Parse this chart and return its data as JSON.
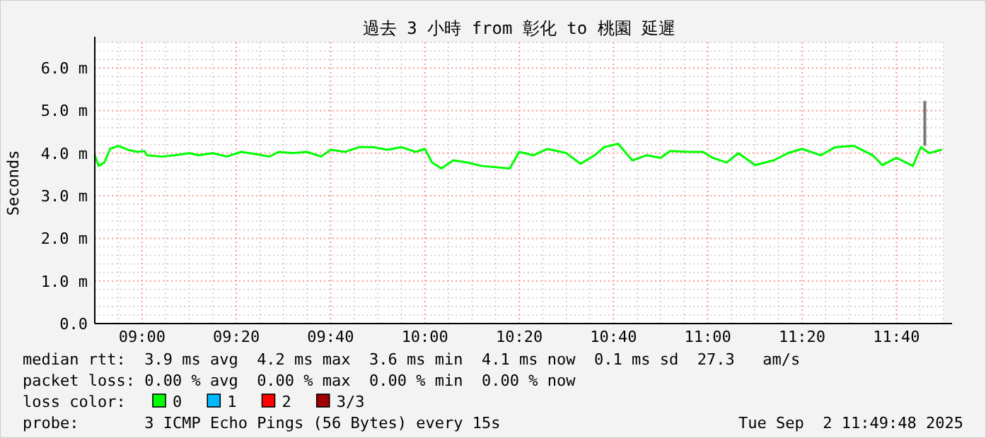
{
  "chart_data": {
    "type": "line",
    "title": "過去 3 小時 from 彰化 to 桃園 延遲",
    "ylabel": "Seconds",
    "xlim": [
      8.833,
      11.8333
    ],
    "xticks": [
      {
        "value": 9.0,
        "label": "09:00"
      },
      {
        "value": 9.3333,
        "label": "09:20"
      },
      {
        "value": 9.6667,
        "label": "09:40"
      },
      {
        "value": 10.0,
        "label": "10:00"
      },
      {
        "value": 10.3333,
        "label": "10:20"
      },
      {
        "value": 10.6667,
        "label": "10:40"
      },
      {
        "value": 11.0,
        "label": "11:00"
      },
      {
        "value": 11.3333,
        "label": "11:20"
      },
      {
        "value": 11.6667,
        "label": "11:40"
      }
    ],
    "ylim": [
      0,
      6.6
    ],
    "yticks": [
      {
        "value": 0,
        "label": "0.0"
      },
      {
        "value": 1,
        "label": "1.0 m"
      },
      {
        "value": 2,
        "label": "2.0 m"
      },
      {
        "value": 3,
        "label": "3.0 m"
      },
      {
        "value": 4,
        "label": "4.0 m"
      },
      {
        "value": 5,
        "label": "5.0 m"
      },
      {
        "value": 6,
        "label": "6.0 m"
      }
    ],
    "grid": true,
    "legend": "bottom left",
    "marker": "none",
    "line_style": "solid",
    "series": [
      {
        "name": "0",
        "color": "#00ff00",
        "x": [
          8.833,
          8.847,
          8.867,
          8.887,
          8.917,
          8.95,
          8.983,
          9.008,
          9.017,
          9.067,
          9.117,
          9.167,
          9.2,
          9.25,
          9.3,
          9.35,
          9.4,
          9.45,
          9.483,
          9.533,
          9.583,
          9.633,
          9.667,
          9.717,
          9.767,
          9.817,
          9.867,
          9.917,
          9.967,
          10.0,
          10.025,
          10.058,
          10.1,
          10.15,
          10.2,
          10.3,
          10.333,
          10.383,
          10.433,
          10.5,
          10.55,
          10.6,
          10.633,
          10.683,
          10.733,
          10.783,
          10.833,
          10.867,
          10.933,
          10.983,
          11.017,
          11.067,
          11.108,
          11.167,
          11.233,
          11.283,
          11.333,
          11.4,
          11.45,
          11.517,
          11.583,
          11.617,
          11.667,
          11.725,
          11.753,
          11.783,
          11.825
        ],
        "values": [
          3.95,
          3.7,
          3.78,
          4.1,
          4.17,
          4.08,
          4.03,
          4.05,
          3.95,
          3.92,
          3.95,
          4.0,
          3.95,
          4.0,
          3.92,
          4.03,
          3.98,
          3.92,
          4.03,
          4.0,
          4.03,
          3.92,
          4.08,
          4.03,
          4.14,
          4.14,
          4.08,
          4.14,
          4.03,
          4.1,
          3.78,
          3.64,
          3.83,
          3.78,
          3.7,
          3.64,
          4.03,
          3.95,
          4.1,
          4.0,
          3.75,
          3.95,
          4.14,
          4.22,
          3.83,
          3.95,
          3.89,
          4.05,
          4.03,
          4.03,
          3.89,
          3.78,
          4.0,
          3.72,
          3.83,
          4.0,
          4.1,
          3.95,
          4.14,
          4.17,
          3.95,
          3.72,
          3.89,
          3.7,
          4.14,
          4.0,
          4.08
        ]
      },
      {
        "color": "#777777",
        "x": [
          11.767,
          11.767
        ],
        "values": [
          4.2,
          5.2
        ]
      },
      {
        "name": "1",
        "color": "#00b8ff"
      },
      {
        "name": "2",
        "color": "#ff0000"
      },
      {
        "name": "3/3",
        "color": "#a10000"
      }
    ],
    "annotations": [
      "median rtt:  3.9 ms avg  4.2 ms max  3.6 ms min  4.1 ms now  0.1 ms sd  27.3   am/s",
      "packet loss: 0.00 % avg  0.00 % max  0.00 % min  0.00 % now",
      "loss color:",
      "probe:       3 ICMP Echo Pings (56 Bytes) every 15s",
      "Tue Sep  2 11:49:48 2025"
    ]
  }
}
